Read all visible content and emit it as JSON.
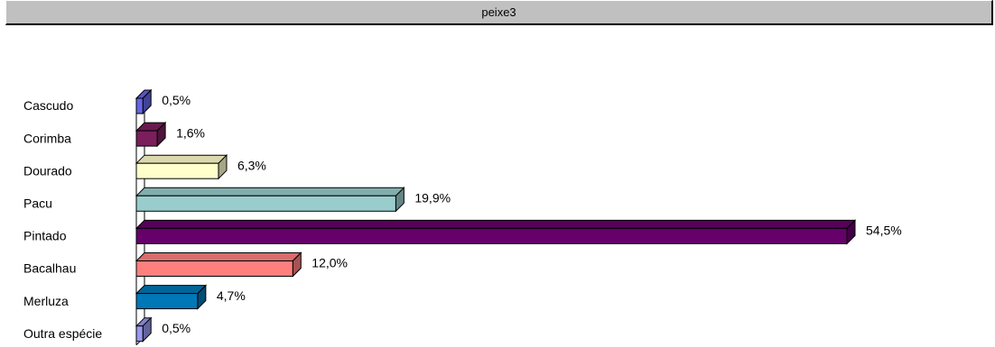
{
  "window": {
    "title": "peixe3"
  },
  "chart_data": {
    "type": "bar",
    "orientation": "horizontal",
    "three_d": true,
    "categories": [
      "Cascudo",
      "Corimba",
      "Dourado",
      "Pacu",
      "Pintado",
      "Bacalhau",
      "Merluza",
      "Outra espécie"
    ],
    "values": [
      0.5,
      1.6,
      6.3,
      19.9,
      54.5,
      12.0,
      4.7,
      0.5
    ],
    "value_labels": [
      "0,5%",
      "1,6%",
      "6,3%",
      "19,9%",
      "54,5%",
      "12,0%",
      "4,7%",
      "0,5%"
    ],
    "colors": [
      "#6666e6",
      "#7a1f5c",
      "#ffffcc",
      "#99cccc",
      "#66006a",
      "#ff7f7f",
      "#0077b6",
      "#9999ee"
    ],
    "title": "",
    "xlabel": "",
    "ylabel": "",
    "xlim": [
      0,
      54.5
    ],
    "grid": false,
    "legend": "none"
  }
}
